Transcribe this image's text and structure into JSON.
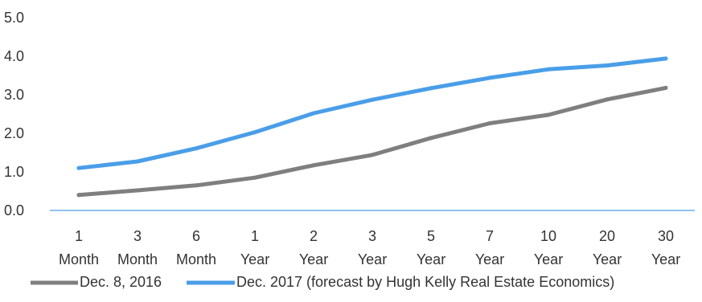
{
  "chart_data": {
    "type": "line",
    "categories": [
      [
        "1",
        "Month"
      ],
      [
        "3",
        "Month"
      ],
      [
        "6",
        "Month"
      ],
      [
        "1",
        "Year"
      ],
      [
        "2",
        "Year"
      ],
      [
        "3",
        "Year"
      ],
      [
        "5",
        "Year"
      ],
      [
        "7",
        "Year"
      ],
      [
        "10",
        "Year"
      ],
      [
        "20",
        "Year"
      ],
      [
        "30",
        "Year"
      ]
    ],
    "series": [
      {
        "name": "Dec. 8, 2016",
        "color": "#7f7f7f",
        "values": [
          0.4,
          0.52,
          0.65,
          0.85,
          1.17,
          1.44,
          1.88,
          2.26,
          2.48,
          2.88,
          3.18
        ]
      },
      {
        "name": "Dec. 2017 (forecast by Hugh Kelly Real Estate Economics)",
        "color": "#4a9ee8",
        "values": [
          1.1,
          1.27,
          1.61,
          2.03,
          2.52,
          2.87,
          3.17,
          3.44,
          3.66,
          3.76,
          3.94
        ]
      }
    ],
    "y_ticks": [
      "0.0",
      "1.0",
      "2.0",
      "3.0",
      "4.0",
      "5.0"
    ],
    "ylim": [
      0,
      5
    ],
    "grid": false,
    "zero_line_color": "#4a9ee8",
    "legend_position": "bottom",
    "title": "",
    "xlabel": "",
    "ylabel": ""
  }
}
